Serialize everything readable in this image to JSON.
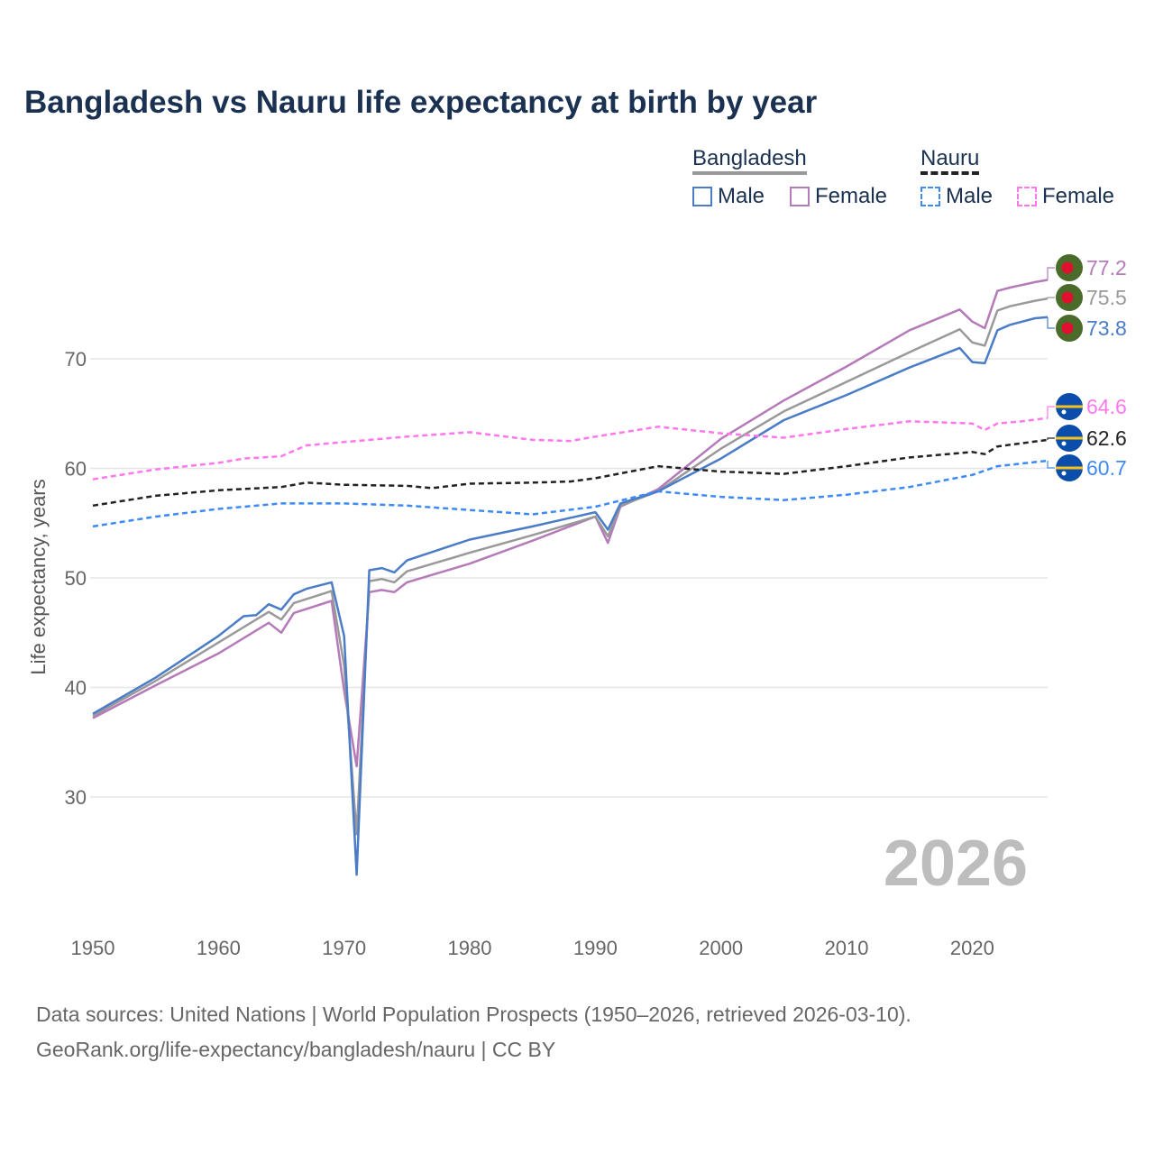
{
  "chart_data": {
    "type": "line",
    "title": "Bangladesh vs Nauru life expectancy at birth by year",
    "xlabel": "",
    "ylabel": "Life expectancy, years",
    "xlim": [
      1950,
      2026
    ],
    "ylim": [
      20,
      80
    ],
    "xticks": [
      "1950",
      "1960",
      "1970",
      "1980",
      "1990",
      "2000",
      "2010",
      "2020"
    ],
    "yticks": [
      "30",
      "40",
      "50",
      "60",
      "70"
    ],
    "grid": true,
    "year_watermark": "2026",
    "legend": {
      "groups": [
        {
          "name": "Bangladesh",
          "items": [
            "Male",
            "Female"
          ]
        },
        {
          "name": "Nauru",
          "items": [
            "Male",
            "Female"
          ]
        }
      ],
      "placement": "top-right"
    },
    "series": [
      {
        "name": "Bangladesh Female",
        "color": "#b57ab8",
        "dashed": false,
        "end_label": "77.2",
        "flag": "bangladesh",
        "x": [
          1950,
          1955,
          1960,
          1964,
          1965,
          1966,
          1969,
          1970,
          1971,
          1972,
          1973,
          1974,
          1975,
          1980,
          1985,
          1990,
          1991,
          1992,
          1995,
          2000,
          2005,
          2010,
          2015,
          2019,
          2020,
          2021,
          2022,
          2023,
          2025,
          2026
        ],
        "y": [
          37.2,
          40.2,
          43.1,
          45.9,
          45.0,
          46.8,
          47.9,
          39.7,
          32.8,
          48.7,
          48.9,
          48.7,
          49.6,
          51.3,
          53.4,
          55.6,
          53.2,
          56.5,
          58.1,
          62.7,
          66.2,
          69.3,
          72.6,
          74.5,
          73.4,
          72.8,
          76.2,
          76.5,
          77.0,
          77.2
        ]
      },
      {
        "name": "Bangladesh",
        "color": "#999999",
        "dashed": false,
        "end_label": "75.5",
        "flag": "bangladesh",
        "x": [
          1950,
          1955,
          1960,
          1964,
          1965,
          1966,
          1969,
          1970,
          1971,
          1972,
          1973,
          1974,
          1975,
          1980,
          1985,
          1990,
          1991,
          1992,
          1995,
          2000,
          2005,
          2010,
          2015,
          2019,
          2020,
          2021,
          2022,
          2023,
          2025,
          2026
        ],
        "y": [
          37.4,
          40.6,
          44.1,
          46.9,
          46.2,
          47.7,
          48.8,
          42.0,
          26.6,
          49.7,
          49.9,
          49.6,
          50.6,
          52.3,
          53.9,
          55.6,
          53.8,
          56.6,
          57.9,
          61.8,
          65.2,
          67.9,
          70.6,
          72.7,
          71.5,
          71.2,
          74.4,
          74.8,
          75.3,
          75.5
        ]
      },
      {
        "name": "Bangladesh Male",
        "color": "#4a7cc7",
        "dashed": false,
        "end_label": "73.8",
        "flag": "bangladesh",
        "x": [
          1950,
          1955,
          1960,
          1962,
          1963,
          1964,
          1965,
          1966,
          1967,
          1969,
          1970,
          1971,
          1972,
          1973,
          1974,
          1975,
          1980,
          1985,
          1990,
          1991,
          1992,
          1995,
          2000,
          2005,
          2010,
          2015,
          2019,
          2020,
          2021,
          2022,
          2023,
          2025,
          2026
        ],
        "y": [
          37.6,
          40.9,
          44.7,
          46.5,
          46.6,
          47.6,
          47.1,
          48.5,
          49.0,
          49.6,
          44.7,
          22.9,
          50.7,
          50.9,
          50.5,
          51.6,
          53.5,
          54.7,
          56.0,
          54.4,
          56.8,
          57.9,
          60.9,
          64.4,
          66.7,
          69.2,
          71.0,
          69.7,
          69.6,
          72.6,
          73.1,
          73.7,
          73.8
        ]
      },
      {
        "name": "Nauru Female",
        "color": "#ff77ee",
        "dashed": true,
        "end_label": "64.6",
        "flag": "nauru",
        "x": [
          1950,
          1955,
          1960,
          1962,
          1965,
          1967,
          1970,
          1975,
          1980,
          1985,
          1988,
          1990,
          1995,
          2000,
          2005,
          2010,
          2015,
          2020,
          2021,
          2022,
          2024,
          2026
        ],
        "y": [
          59.0,
          59.9,
          60.5,
          60.9,
          61.1,
          62.1,
          62.4,
          62.9,
          63.3,
          62.6,
          62.5,
          62.9,
          63.8,
          63.2,
          62.8,
          63.6,
          64.3,
          64.1,
          63.5,
          64.1,
          64.3,
          64.6
        ]
      },
      {
        "name": "Nauru",
        "color": "#222222",
        "dashed": true,
        "end_label": "62.6",
        "flag": "nauru",
        "x": [
          1950,
          1955,
          1960,
          1965,
          1967,
          1970,
          1975,
          1977,
          1980,
          1985,
          1988,
          1990,
          1995,
          2000,
          2005,
          2010,
          2015,
          2020,
          2021,
          2022,
          2026
        ],
        "y": [
          56.6,
          57.5,
          58.0,
          58.3,
          58.7,
          58.5,
          58.4,
          58.2,
          58.6,
          58.7,
          58.8,
          59.1,
          60.2,
          59.7,
          59.5,
          60.2,
          61.0,
          61.5,
          61.3,
          62.0,
          62.6
        ]
      },
      {
        "name": "Nauru Male",
        "color": "#3d8af7",
        "dashed": true,
        "end_label": "60.7",
        "flag": "nauru",
        "x": [
          1950,
          1955,
          1960,
          1965,
          1970,
          1975,
          1980,
          1985,
          1990,
          1995,
          2000,
          2005,
          2010,
          2015,
          2020,
          2022,
          2026
        ],
        "y": [
          54.7,
          55.6,
          56.3,
          56.8,
          56.8,
          56.6,
          56.2,
          55.8,
          56.5,
          57.9,
          57.4,
          57.1,
          57.6,
          58.3,
          59.4,
          60.2,
          60.7
        ]
      }
    ]
  },
  "footer": {
    "line1": "Data sources: United Nations | World Population Prospects (1950–2026, retrieved 2026-03-10).",
    "line2": "GeoRank.org/life-expectancy/bangladesh/nauru | CC BY"
  }
}
